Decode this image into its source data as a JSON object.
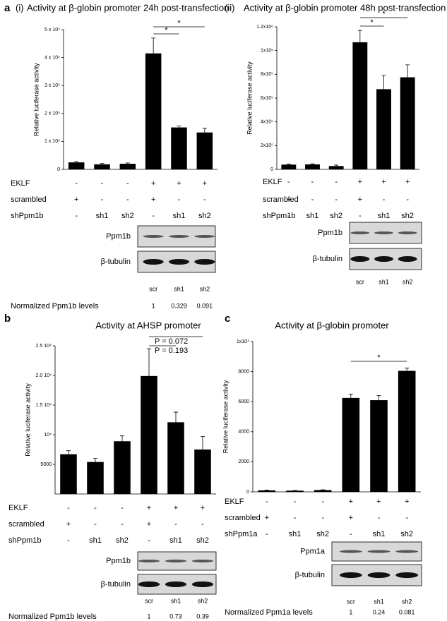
{
  "chart_data": [
    {
      "type": "bar",
      "panel": "a",
      "subpanel": "(i)",
      "title": "Activity at β-globin promoter 24h post-transfection",
      "ylabel": "Relative luciferase activity",
      "color": "#000000",
      "values": [
        25000,
        18000,
        20000,
        415000,
        150000,
        132000
      ],
      "errors": [
        3000,
        3000,
        3000,
        55000,
        5000,
        15000
      ],
      "ylim": [
        0,
        500000
      ],
      "yticks": [
        0,
        {
          "value": 100000,
          "label": "1 x 10⁵"
        },
        {
          "value": 200000,
          "label": "2 x 10⁵"
        },
        {
          "value": 300000,
          "label": "3 x 10⁵"
        },
        {
          "value": 400000,
          "label": "4 x 10⁵"
        },
        {
          "value": 500000,
          "label": "5 x 10⁵"
        }
      ],
      "annotations": [
        "*",
        "*"
      ],
      "rows": [
        {
          "name": "EKLF",
          "values": [
            "-",
            "-",
            "-",
            "+",
            "+",
            "+"
          ]
        },
        {
          "name": "scrambled",
          "values": [
            "+",
            "-",
            "-",
            "+",
            "-",
            "-"
          ]
        },
        {
          "name": "shPpm1b",
          "values": [
            "-",
            "sh1",
            "sh2",
            "-",
            "sh1",
            "sh2"
          ]
        }
      ],
      "blots": [
        "Ppm1b",
        "β-tubulin"
      ],
      "lanes": [
        "scr",
        "sh1",
        "sh2"
      ],
      "normalized": {
        "label": "Normalized Ppm1b levels",
        "values": [
          1,
          0.329,
          0.091
        ]
      }
    },
    {
      "type": "bar",
      "subpanel": "(ii)",
      "title": "Activity at β-globin promoter 48h post-transfection",
      "ylabel": "Relative luciferase activity",
      "color": "#000000",
      "values": [
        40000,
        42000,
        28000,
        1070000,
        675000,
        775000
      ],
      "errors": [
        5000,
        5000,
        8000,
        100000,
        115000,
        105000
      ],
      "ylim": [
        0,
        1200000
      ],
      "yticks": [
        0,
        {
          "value": 200000,
          "label": "2x10⁵"
        },
        {
          "value": 400000,
          "label": "4x10⁵"
        },
        {
          "value": 600000,
          "label": "6x10⁵"
        },
        {
          "value": 800000,
          "label": "8x10⁵"
        },
        {
          "value": 1000000,
          "label": "1x10⁶"
        },
        {
          "value": 1200000,
          "label": "1.2x10⁶"
        }
      ],
      "annotations": [
        "*",
        "*"
      ],
      "rows": [
        {
          "name": "EKLF",
          "values": [
            "-",
            "-",
            "-",
            "+",
            "+",
            "+"
          ]
        },
        {
          "name": "scrambled",
          "values": [
            "+",
            "-",
            "-",
            "+",
            "-",
            "-"
          ]
        },
        {
          "name": "shPpm1b",
          "values": [
            "-",
            "sh1",
            "sh2",
            "-",
            "sh1",
            "sh2"
          ]
        }
      ],
      "blots": [
        "Ppm1b",
        "β-tubulin"
      ],
      "lanes": [
        "scr",
        "sh1",
        "sh2"
      ]
    },
    {
      "type": "bar",
      "panel": "b",
      "title": "Activity at AHSP promoter",
      "ylabel": "Relative luciferase activity",
      "color": "#000000",
      "values": [
        6700,
        5400,
        8900,
        19900,
        12100,
        7500
      ],
      "errors": [
        600,
        600,
        900,
        4600,
        1700,
        2200
      ],
      "ylim": [
        0,
        25000
      ],
      "yticks": [
        5000,
        {
          "value": 10000,
          "label": "10⁴"
        },
        {
          "value": 15000,
          "label": "1.5 10⁴"
        },
        {
          "value": 20000,
          "label": "2.0 10⁴"
        },
        {
          "value": 25000,
          "label": "2.5 10⁴"
        }
      ],
      "annotations": [
        "P = 0.072",
        "P = 0.193"
      ],
      "rows": [
        {
          "name": "EKLF",
          "values": [
            "-",
            "-",
            "-",
            "+",
            "+",
            "+"
          ]
        },
        {
          "name": "scrambled",
          "values": [
            "+",
            "-",
            "-",
            "+",
            "-",
            "-"
          ]
        },
        {
          "name": "shPpm1b",
          "values": [
            "-",
            "sh1",
            "sh2",
            "-",
            "sh1",
            "sh2"
          ]
        }
      ],
      "blots": [
        "Ppm1b",
        "β-tubulin"
      ],
      "lanes": [
        "scr",
        "sh1",
        "sh2"
      ],
      "normalized": {
        "label": "Normalized Ppm1b levels",
        "values": [
          1,
          0.73,
          0.39
        ]
      }
    },
    {
      "type": "bar",
      "panel": "c",
      "title": "Activity at β-globin promoter",
      "ylabel": "Relative luciferase activity",
      "color": "#000000",
      "values": [
        100,
        80,
        120,
        6250,
        6100,
        8050
      ],
      "errors": [
        20,
        20,
        20,
        250,
        300,
        180
      ],
      "ylim": [
        0,
        10000
      ],
      "yticks": [
        0,
        2000,
        4000,
        6000,
        8000,
        {
          "value": 10000,
          "label": "1x10⁴"
        }
      ],
      "annotations": [
        "*"
      ],
      "rows": [
        {
          "name": "EKLF",
          "values": [
            "-",
            "-",
            "-",
            "+",
            "+",
            "+"
          ]
        },
        {
          "name": "scrambled",
          "values": [
            "+",
            "-",
            "-",
            "+",
            "-",
            "-"
          ]
        },
        {
          "name": "shPpm1a",
          "values": [
            "-",
            "sh1",
            "sh2",
            "-",
            "sh1",
            "sh2"
          ]
        }
      ],
      "blots": [
        "Ppm1a",
        "β-tubulin"
      ],
      "lanes": [
        "scr",
        "sh1",
        "sh2"
      ],
      "normalized": {
        "label": "Normalized Ppm1a levels",
        "values": [
          1,
          0.24,
          0.081
        ]
      }
    }
  ]
}
